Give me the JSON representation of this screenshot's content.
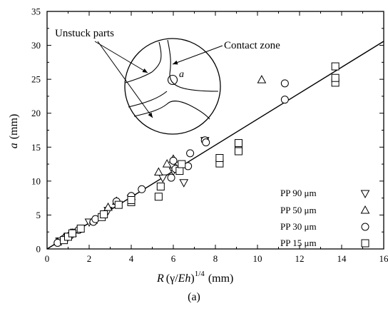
{
  "chart_data": {
    "type": "scatter",
    "caption": "(a)",
    "xlabel": {
      "R": "R",
      "open": "(",
      "gamma": "γ",
      "slash": "/",
      "Eh": "Eh",
      "close": ")",
      "sup": "1/4",
      "unit": "(mm)"
    },
    "ylabel": {
      "a": "a",
      "unit": "(mm)"
    },
    "xlim": [
      0,
      16
    ],
    "ylim": [
      0,
      35
    ],
    "xticks": [
      "0",
      "2",
      "4",
      "6",
      "8",
      "10",
      "12",
      "14",
      "16"
    ],
    "yticks": [
      "0",
      "5",
      "10",
      "15",
      "20",
      "25",
      "30",
      "35"
    ],
    "fit_line": {
      "x": [
        0,
        16
      ],
      "y": [
        0,
        30.6
      ]
    },
    "series": [
      {
        "name": "PP 90 μm",
        "label": "PP  90  μm",
        "marker": "triangle-down",
        "x": [
          0.6,
          1.0,
          1.3,
          2.0,
          2.9,
          4.0,
          5.5,
          6.0,
          6.5,
          7.5
        ],
        "y": [
          1.2,
          1.9,
          2.5,
          4.0,
          5.7,
          7.5,
          10.5,
          11.5,
          9.8,
          16.0
        ]
      },
      {
        "name": "PP 50 μm",
        "label": "PP  50  μm",
        "marker": "triangle-up",
        "x": [
          0.5,
          0.8,
          1.2,
          2.2,
          2.9,
          3.3,
          4.0,
          5.3,
          5.7,
          6.0,
          6.1,
          10.2
        ],
        "y": [
          1.0,
          1.6,
          2.3,
          4.2,
          6.1,
          7.0,
          7.7,
          11.3,
          12.5,
          13.2,
          12.0,
          24.9
        ]
      },
      {
        "name": "PP 30 μm",
        "label": "PP  30  μm",
        "marker": "circle",
        "x": [
          0.5,
          0.8,
          1.1,
          1.5,
          2.2,
          2.3,
          3.3,
          4.0,
          4.5,
          5.9,
          6.0,
          6.1,
          6.7,
          6.8,
          7.5,
          7.55,
          9.1,
          11.3,
          11.3
        ],
        "y": [
          0.9,
          1.5,
          2.0,
          2.8,
          4.0,
          4.4,
          7.0,
          7.8,
          8.8,
          10.5,
          13.0,
          11.8,
          12.2,
          14.1,
          16.0,
          15.7,
          15.0,
          22.0,
          24.4
        ]
      },
      {
        "name": "PP 15 μm",
        "label": "PP  15  μm",
        "marker": "square",
        "x": [
          0.8,
          1.0,
          1.2,
          1.6,
          2.6,
          2.7,
          3.4,
          4.0,
          4.0,
          5.3,
          5.4,
          6.3,
          6.4,
          8.2,
          8.2,
          9.1,
          9.1,
          13.7,
          13.7,
          13.7
        ],
        "y": [
          1.3,
          1.8,
          2.3,
          3.0,
          4.7,
          5.1,
          6.5,
          6.9,
          7.2,
          7.7,
          9.2,
          11.5,
          12.5,
          12.6,
          13.4,
          14.4,
          15.6,
          24.5,
          25.2,
          26.9
        ]
      }
    ],
    "inset": {
      "contact_label": "Contact zone",
      "unstuck_label": "Unstuck parts",
      "a_label": "a"
    }
  }
}
